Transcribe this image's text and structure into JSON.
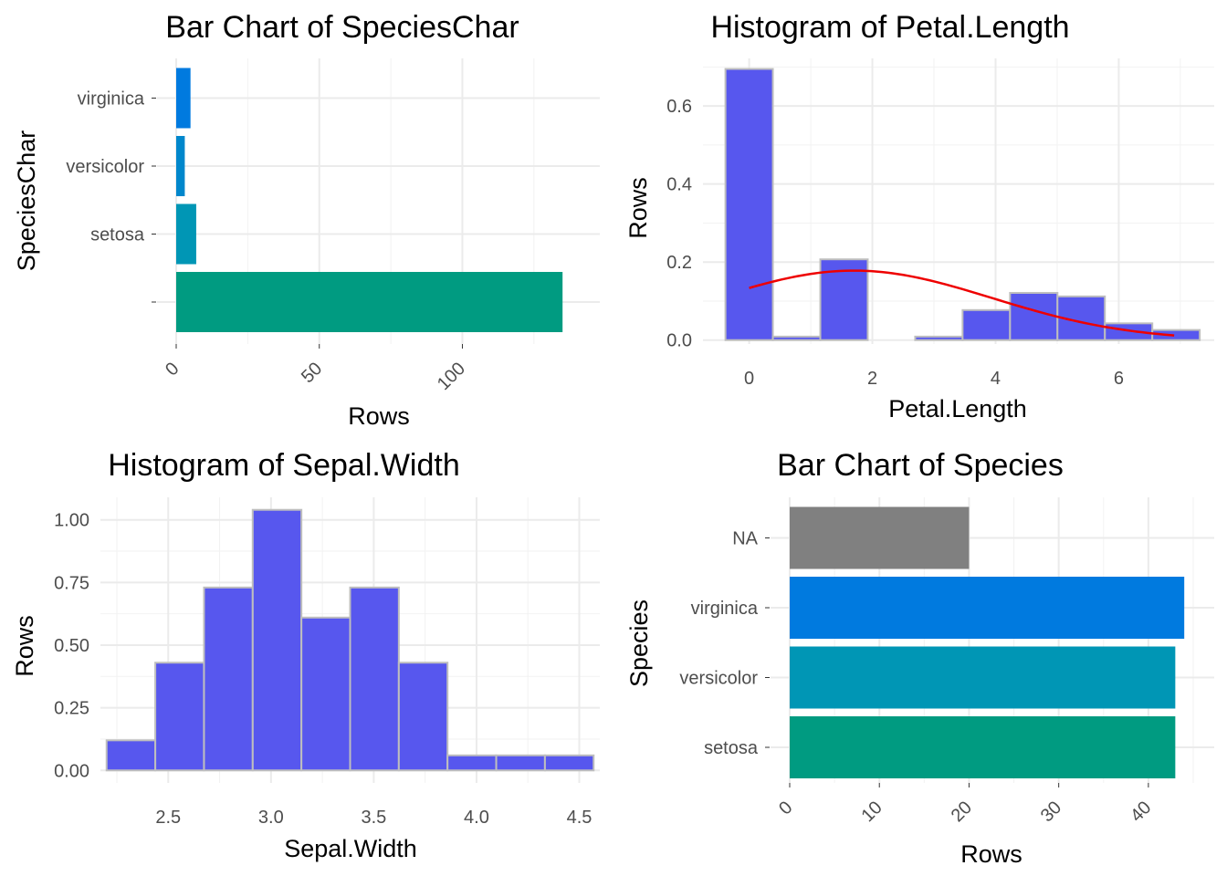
{
  "charts": [
    {
      "id": "species-char-bar",
      "type": "bar",
      "orientation": "horizontal",
      "title": "Bar Chart of SpeciesChar",
      "xlabel": "Rows",
      "ylabel": "SpeciesChar",
      "categories": [
        "",
        "setosa",
        "versicolor",
        "virginica"
      ],
      "values": [
        135,
        7,
        3,
        5
      ],
      "colors": [
        "#009B81",
        "#0096B5",
        "#0087CC",
        "#007ADF"
      ],
      "xticks": [
        0,
        50,
        100
      ],
      "xtick_labels": [
        "0",
        "50",
        "100"
      ],
      "xlim": [
        0,
        141
      ],
      "xtick_rotation": -45
    },
    {
      "id": "petal-length-hist",
      "type": "histogram",
      "title": "Histogram of Petal.Length",
      "xlabel": "Petal.Length",
      "ylabel": "Rows",
      "bins": [
        {
          "x0": -0.385,
          "x1": 0.385,
          "y": 0.695
        },
        {
          "x0": 0.385,
          "x1": 1.155,
          "y": 0.009
        },
        {
          "x0": 1.155,
          "x1": 1.925,
          "y": 0.207
        },
        {
          "x0": 1.925,
          "x1": 2.695,
          "y": 0.0
        },
        {
          "x0": 2.695,
          "x1": 3.465,
          "y": 0.009
        },
        {
          "x0": 3.465,
          "x1": 4.235,
          "y": 0.077
        },
        {
          "x0": 4.235,
          "x1": 5.005,
          "y": 0.121
        },
        {
          "x0": 5.005,
          "x1": 5.775,
          "y": 0.112
        },
        {
          "x0": 5.775,
          "x1": 6.545,
          "y": 0.043
        },
        {
          "x0": 6.545,
          "x1": 7.315,
          "y": 0.026
        }
      ],
      "fill": "#5757EE",
      "edge": "#BEBEBE",
      "density_curve": {
        "mean": 1.7,
        "sd": 2.24,
        "x_from": 0,
        "x_to": 6.9,
        "color": "#EE0000"
      },
      "xlim": [
        -0.75,
        7.55
      ],
      "ylim": [
        -0.01,
        0.722
      ],
      "xticks": [
        0,
        2,
        4,
        6
      ],
      "yticks": [
        0.0,
        0.2,
        0.4,
        0.6
      ],
      "xtick_labels": [
        "0",
        "2",
        "4",
        "6"
      ],
      "ytick_labels": [
        "0.0",
        "0.2",
        "0.4",
        "0.6"
      ]
    },
    {
      "id": "sepal-width-hist",
      "type": "histogram",
      "title": "Histogram of Sepal.Width",
      "xlabel": "Sepal.Width",
      "ylabel": "Rows",
      "bins": [
        {
          "x0": 2.2,
          "x1": 2.437,
          "y": 0.12
        },
        {
          "x0": 2.437,
          "x1": 2.674,
          "y": 0.43
        },
        {
          "x0": 2.674,
          "x1": 2.911,
          "y": 0.73
        },
        {
          "x0": 2.911,
          "x1": 3.148,
          "y": 1.04
        },
        {
          "x0": 3.148,
          "x1": 3.385,
          "y": 0.61
        },
        {
          "x0": 3.385,
          "x1": 3.622,
          "y": 0.73
        },
        {
          "x0": 3.622,
          "x1": 3.859,
          "y": 0.43
        },
        {
          "x0": 3.859,
          "x1": 4.096,
          "y": 0.06
        },
        {
          "x0": 4.096,
          "x1": 4.333,
          "y": 0.06
        },
        {
          "x0": 4.333,
          "x1": 4.57,
          "y": 0.06
        }
      ],
      "fill": "#5757EE",
      "edge": "#BEBEBE",
      "xlim": [
        2.17,
        4.6
      ],
      "ylim": [
        -0.05,
        1.09
      ],
      "xticks": [
        2.5,
        3.0,
        3.5,
        4.0,
        4.5
      ],
      "yticks": [
        0.0,
        0.25,
        0.5,
        0.75,
        1.0
      ],
      "xtick_labels": [
        "2.5",
        "3.0",
        "3.5",
        "4.0",
        "4.5"
      ],
      "ytick_labels": [
        "0.00",
        "0.25",
        "0.50",
        "0.75",
        "1.00"
      ]
    },
    {
      "id": "species-bar",
      "type": "bar",
      "orientation": "horizontal",
      "title": "Bar Chart of Species",
      "xlabel": "Rows",
      "ylabel": "Species",
      "categories": [
        "setosa",
        "versicolor",
        "virginica",
        "NA"
      ],
      "values": [
        43,
        43,
        44,
        20
      ],
      "colors": [
        "#009B81",
        "#0096B5",
        "#007ADF",
        "#808080"
      ],
      "xticks": [
        0,
        10,
        20,
        30,
        40
      ],
      "xtick_labels": [
        "0",
        "10",
        "20",
        "30",
        "40"
      ],
      "xlim": [
        0,
        45
      ],
      "xtick_rotation": -45
    }
  ]
}
